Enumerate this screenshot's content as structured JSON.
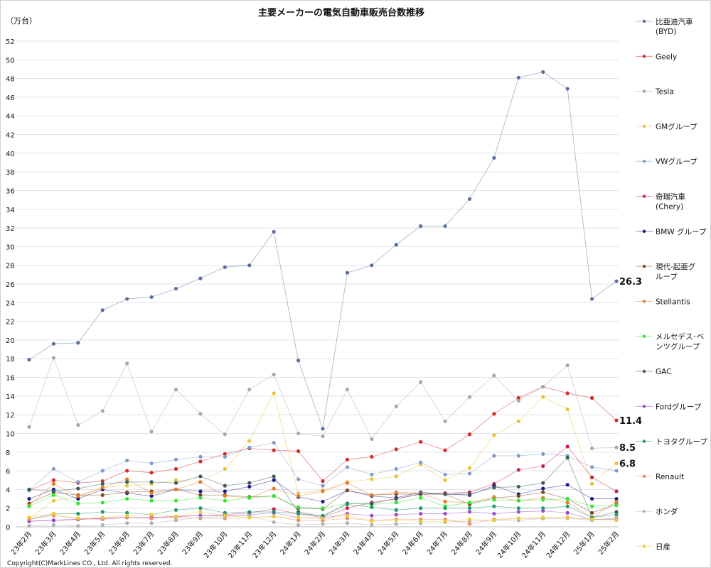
{
  "chart_data": {
    "type": "line",
    "title": "主要メーカーの電気自動車販売台数推移",
    "ylabel": "（万台）",
    "xlabel": "",
    "ylim": [
      0,
      52
    ],
    "ytick_step": 2,
    "grid": true,
    "legend_position": "right",
    "copyright": "Copyright(C)MarkLines CO., Ltd. All rights reserved.",
    "categories": [
      "23年2月",
      "23年3月",
      "23年4月",
      "23年5月",
      "23年6月",
      "23年7月",
      "23年8月",
      "23年9月",
      "23年10月",
      "23年11月",
      "23年12月",
      "24年1月",
      "24年2月",
      "24年3月",
      "24年4月",
      "24年5月",
      "24年6月",
      "24年7月",
      "24年8月",
      "24年9月",
      "24年10月",
      "24年11月",
      "24年12月",
      "25年1月",
      "25年2月"
    ],
    "series": [
      {
        "name": "比亜迪汽車",
        "name2": "(BYD)",
        "color": "#5a6fa0",
        "values": [
          17.9,
          19.6,
          19.7,
          23.2,
          24.4,
          24.6,
          25.5,
          26.6,
          27.8,
          28.0,
          31.6,
          17.8,
          10.5,
          27.2,
          28.0,
          30.2,
          32.2,
          32.2,
          35.1,
          39.5,
          48.1,
          48.7,
          46.9,
          24.4,
          26.3
        ]
      },
      {
        "name": "Geely",
        "color": "#d42a2a",
        "values": [
          3.9,
          5.0,
          4.7,
          4.9,
          6.0,
          5.8,
          6.2,
          7.0,
          7.8,
          8.4,
          8.2,
          8.1,
          4.9,
          7.2,
          7.5,
          8.3,
          9.1,
          8.2,
          9.9,
          12.1,
          13.8,
          15.0,
          14.3,
          13.8,
          11.4
        ]
      },
      {
        "name": "Tesla",
        "color": "#a8a8a8",
        "values": [
          10.7,
          18.1,
          10.9,
          12.4,
          17.5,
          10.2,
          14.7,
          12.1,
          9.9,
          14.7,
          16.3,
          10.0,
          9.7,
          14.7,
          9.4,
          12.9,
          15.5,
          11.3,
          13.9,
          16.2,
          13.5,
          15.0,
          17.3,
          8.4,
          8.5
        ]
      },
      {
        "name": "GMグループ",
        "color": "#e8c33a",
        "values": [
          0.9,
          2.8,
          3.2,
          4.2,
          4.4,
          4.6,
          5.0,
          4.8,
          6.2,
          9.2,
          14.3,
          3.6,
          3.9,
          4.8,
          5.1,
          5.4,
          6.7,
          5.0,
          6.3,
          9.8,
          11.3,
          13.9,
          12.6,
          4.6,
          6.8
        ]
      },
      {
        "name": "VWグループ",
        "color": "#7f9cc7",
        "values": [
          3.9,
          6.2,
          4.8,
          6.0,
          7.1,
          6.8,
          7.2,
          7.5,
          7.5,
          8.5,
          9.0,
          5.1,
          4.4,
          6.4,
          5.6,
          6.2,
          6.9,
          5.6,
          5.7,
          7.6,
          7.6,
          7.8,
          7.6,
          6.4,
          6.0
        ]
      },
      {
        "name": "奇瑞汽車",
        "name2": "(Chery)",
        "color": "#c8234a",
        "values": [
          0.6,
          0.7,
          0.8,
          0.9,
          1.0,
          1.0,
          1.1,
          1.2,
          1.3,
          1.5,
          1.9,
          1.4,
          1.0,
          2.0,
          2.6,
          3.0,
          3.5,
          3.6,
          3.7,
          4.6,
          6.1,
          6.5,
          8.6,
          5.3,
          3.8
        ]
      },
      {
        "name": "BMW グループ",
        "color": "#1a1a8c",
        "values": [
          3.0,
          4.0,
          3.0,
          4.0,
          3.6,
          3.3,
          4.0,
          3.8,
          3.8,
          4.3,
          5.0,
          3.2,
          2.7,
          3.9,
          3.3,
          3.1,
          3.7,
          3.5,
          3.4,
          4.4,
          3.5,
          4.1,
          4.5,
          3.0,
          3.0
        ]
      },
      {
        "name": "現代-起亜グ",
        "name2": "ループ",
        "color": "#7a4a1f",
        "values": [
          2.5,
          3.7,
          3.4,
          3.4,
          3.7,
          3.8,
          4.0,
          3.4,
          3.4,
          3.2,
          3.3,
          2.0,
          1.9,
          3.9,
          3.4,
          3.5,
          3.5,
          3.5,
          2.4,
          3.1,
          3.3,
          3.7,
          3.0,
          1.5,
          2.4
        ]
      },
      {
        "name": "Stellantis",
        "color": "#e87a2a",
        "values": [
          2.3,
          4.6,
          3.3,
          4.2,
          5.1,
          3.6,
          4.0,
          4.8,
          3.3,
          3.1,
          4.1,
          3.3,
          3.8,
          4.7,
          3.4,
          3.7,
          3.6,
          2.7,
          2.6,
          3.2,
          2.8,
          3.1,
          2.6,
          1.0,
          2.7
        ]
      },
      {
        "name": "メルセデス･ベ",
        "name2": "ンツグループ",
        "color": "#2ee82e",
        "values": [
          2.2,
          3.4,
          2.5,
          2.6,
          3.0,
          2.8,
          2.8,
          3.1,
          2.8,
          3.1,
          3.3,
          2.1,
          2.0,
          2.5,
          2.4,
          2.6,
          3.1,
          2.2,
          2.6,
          2.9,
          2.8,
          2.9,
          3.0,
          2.2,
          2.3
        ]
      },
      {
        "name": "GAC",
        "color": "#3f5a5a",
        "values": [
          4.0,
          3.8,
          4.1,
          4.6,
          4.8,
          4.8,
          4.7,
          5.4,
          4.4,
          4.7,
          5.4,
          1.6,
          1.1,
          2.5,
          2.5,
          3.0,
          3.5,
          3.5,
          3.5,
          4.2,
          4.3,
          4.7,
          7.4,
          1.0,
          1.6
        ]
      },
      {
        "name": "Fordグループ",
        "color": "#9a4ad0",
        "values": [
          0.6,
          0.7,
          0.8,
          0.9,
          1.0,
          1.0,
          1.1,
          1.2,
          1.2,
          1.3,
          1.5,
          1.0,
          0.9,
          1.4,
          1.2,
          1.3,
          1.4,
          1.4,
          1.6,
          1.4,
          1.6,
          1.7,
          1.5,
          0.8,
          0.8
        ]
      },
      {
        "name": "トヨタグループ",
        "color": "#1f9a6a",
        "values": [
          0.8,
          1.4,
          1.4,
          1.6,
          1.5,
          1.3,
          1.8,
          2.0,
          1.5,
          1.6,
          1.6,
          1.4,
          1.2,
          2.4,
          2.1,
          1.8,
          2.0,
          2.0,
          2.0,
          2.2,
          2.0,
          2.0,
          2.2,
          1.0,
          1.3
        ]
      },
      {
        "name": "Renault",
        "color": "#e88a6a",
        "values": [
          0.8,
          1.2,
          0.9,
          0.8,
          1.0,
          0.9,
          1.0,
          0.9,
          0.9,
          1.0,
          1.1,
          0.7,
          0.7,
          0.9,
          0.7,
          0.8,
          0.8,
          0.8,
          0.3,
          0.8,
          0.9,
          0.9,
          1.0,
          0.8,
          0.9
        ]
      },
      {
        "name": "ホンダ",
        "color": "#b0b0b0",
        "values": [
          0.1,
          0.2,
          0.1,
          0.2,
          0.4,
          0.4,
          0.7,
          1.0,
          1.1,
          1.2,
          0.5,
          0.2,
          0.3,
          0.4,
          0.2,
          0.3,
          0.4,
          0.5,
          0.6,
          0.7,
          0.7,
          0.9,
          0.9,
          0.7,
          1.0
        ]
      },
      {
        "name": "日産",
        "color": "#f0c830",
        "values": [
          1.0,
          1.4,
          0.9,
          1.0,
          1.2,
          1.3,
          1.1,
          1.6,
          1.2,
          1.0,
          1.1,
          1.0,
          0.9,
          1.2,
          0.6,
          0.7,
          0.6,
          0.6,
          0.8,
          0.7,
          0.9,
          1.0,
          1.0,
          0.8,
          0.7
        ]
      }
    ],
    "annotations": [
      {
        "text": "26.3",
        "value": 26.3
      },
      {
        "text": "11.4",
        "value": 11.4
      },
      {
        "text": "8.5",
        "value": 8.5
      },
      {
        "text": "6.8",
        "value": 6.8
      }
    ]
  }
}
